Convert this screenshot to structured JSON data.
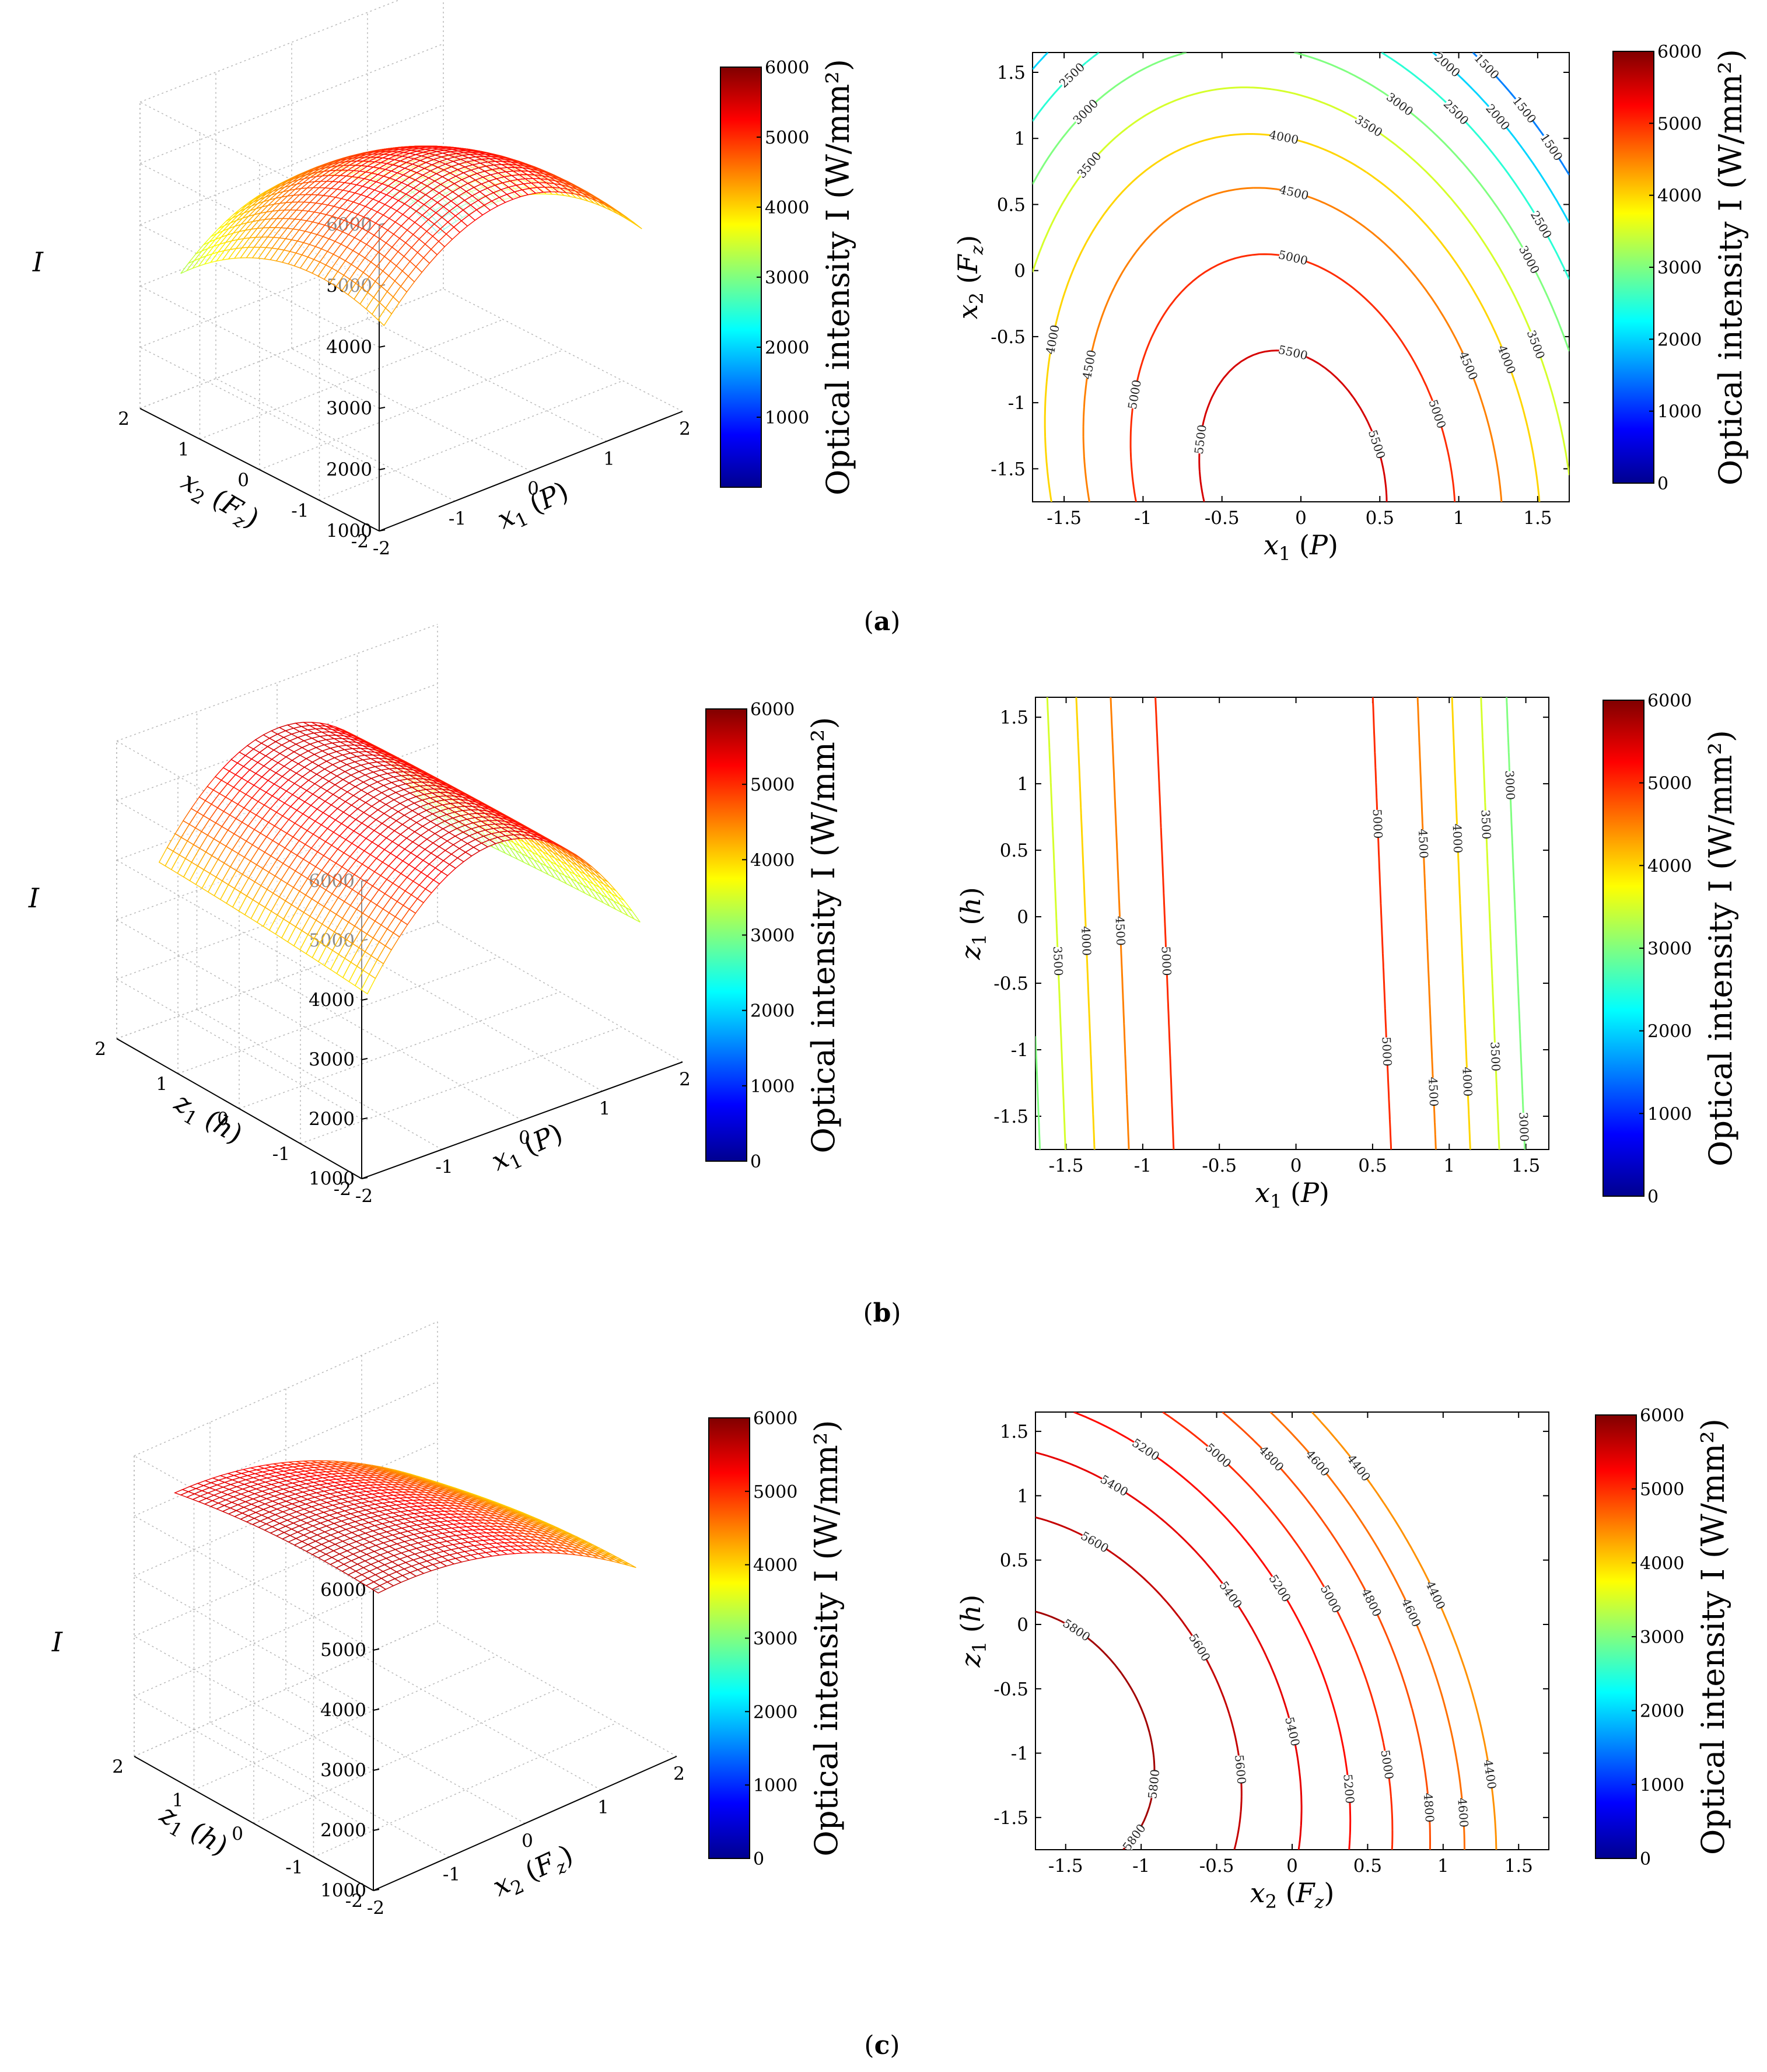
{
  "colors": {
    "jet": [
      "#00008f",
      "#0000ff",
      "#0080ff",
      "#00ffff",
      "#80ff80",
      "#ffff00",
      "#ff8000",
      "#ff0000",
      "#800000"
    ],
    "grid": "#b8b8b8",
    "axis": "#000000"
  },
  "chart_data": [
    {
      "id": "a-surface",
      "type": "surface3d",
      "caption": "(a)",
      "caption_letter": "a",
      "zlabel": "I",
      "xlabel": "x1 (P)",
      "ylabel": "x2 (Fz)",
      "xlim": [
        -2,
        2
      ],
      "ylim": [
        -2,
        2
      ],
      "zlim": [
        1000,
        6000
      ],
      "x_ticks": [
        "-2",
        "-1",
        "0",
        "1",
        "2"
      ],
      "y_ticks": [
        "-2",
        "-1",
        "0",
        "1",
        "2"
      ],
      "z_ticks": [
        "1000",
        "2000",
        "3000",
        "4000",
        "5000",
        "6000"
      ],
      "colorbar": {
        "label": "Optical intensity I (W/mm²)",
        "ticks": [
          "1000",
          "2000",
          "3000",
          "4000",
          "5000",
          "6000"
        ],
        "range": [
          0,
          6000
        ]
      },
      "surface": {
        "base": 5420,
        "cx": -0.1,
        "cy": -0.9,
        "ax": 440,
        "ay": 210,
        "axy": 80,
        "x_range": [
          -1.7,
          1.7
        ],
        "y_range": [
          -1.7,
          1.7
        ]
      }
    },
    {
      "id": "a-contour",
      "type": "contour",
      "xlabel": "x1 (P)",
      "ylabel": "x2 (Fz)",
      "xlim": [
        -1.7,
        1.7
      ],
      "ylim": [
        -1.75,
        1.65
      ],
      "x_ticks": [
        "-1.5",
        "-1",
        "-0.5",
        "0",
        "0.5",
        "1",
        "1.5"
      ],
      "y_ticks": [
        "-1.5",
        "-1",
        "-0.5",
        "0",
        "0.5",
        "1",
        "1.5"
      ],
      "levels": [
        1500,
        2000,
        2500,
        3000,
        3500,
        4000,
        4500,
        5000,
        5500
      ],
      "colorbar": {
        "label": "Optical intensity I (W/mm²)",
        "ticks": [
          "0",
          "1000",
          "2000",
          "3000",
          "4000",
          "5000",
          "6000"
        ],
        "range": [
          0,
          6000
        ]
      },
      "surface": {
        "base": 5750,
        "cx": -0.05,
        "cy": -1.6,
        "ax": 730,
        "ay": 260,
        "axy": 150
      }
    },
    {
      "id": "b-surface",
      "type": "surface3d",
      "caption": "(b)",
      "caption_letter": "b",
      "zlabel": "I",
      "xlabel": "x1 (P)",
      "ylabel": "z1 (h)",
      "xlim": [
        -2,
        2
      ],
      "ylim": [
        -2,
        2
      ],
      "zlim": [
        1000,
        6000
      ],
      "x_ticks": [
        "-2",
        "-1",
        "0",
        "1",
        "2"
      ],
      "y_ticks": [
        "-2",
        "-1",
        "0",
        "1",
        "2"
      ],
      "z_ticks": [
        "1000",
        "2000",
        "3000",
        "4000",
        "5000",
        "6000"
      ],
      "colorbar": {
        "label": "Optical intensity I (W/mm²)",
        "ticks": [
          "0",
          "1000",
          "2000",
          "3000",
          "4000",
          "5000",
          "6000"
        ],
        "range": [
          0,
          6000
        ]
      },
      "surface": {
        "base": 5550,
        "cx": -0.15,
        "cy": 0,
        "ax": 680,
        "ay": 10,
        "axy": 40,
        "x_range": [
          -1.7,
          1.7
        ],
        "y_range": [
          -1.7,
          1.7
        ]
      }
    },
    {
      "id": "b-contour",
      "type": "contour",
      "xlabel": "x1 (P)",
      "ylabel": "z1 (h)",
      "xlim": [
        -1.7,
        1.65
      ],
      "ylim": [
        -1.75,
        1.65
      ],
      "x_ticks": [
        "-1.5",
        "-1",
        "-0.5",
        "0",
        "0.5",
        "1",
        "1.5"
      ],
      "y_ticks": [
        "-1.5",
        "-1",
        "-0.5",
        "0",
        "0.5",
        "1",
        "1.5"
      ],
      "levels": [
        3000,
        3500,
        4000,
        4500,
        5000
      ],
      "colorbar": {
        "label": "Optical intensity I (W/mm²)",
        "ticks": [
          "0",
          "1000",
          "2000",
          "3000",
          "4000",
          "5000",
          "6000"
        ],
        "range": [
          0,
          6000
        ]
      },
      "surface": {
        "base": 5500,
        "cx": -0.15,
        "cy": 0,
        "ax": 1000,
        "ay": 0,
        "axy": 70
      }
    },
    {
      "id": "c-surface",
      "type": "surface3d",
      "caption": "(c)",
      "caption_letter": "c",
      "zlabel": "I",
      "xlabel": "x2 (Fz)",
      "ylabel": "z1 (h)",
      "xlim": [
        -2,
        2
      ],
      "ylim": [
        -2,
        2
      ],
      "zlim": [
        1000,
        6000
      ],
      "x_ticks": [
        "-2",
        "-1",
        "0",
        "1",
        "2"
      ],
      "y_ticks": [
        "-2",
        "-1",
        "0",
        "1",
        "2"
      ],
      "z_ticks": [
        "1000",
        "2000",
        "3000",
        "4000",
        "5000",
        "6000"
      ],
      "colorbar": {
        "label": "Optical intensity I (W/mm²)",
        "ticks": [
          "0",
          "1000",
          "2000",
          "3000",
          "4000",
          "5000",
          "6000"
        ],
        "range": [
          0,
          6000
        ]
      },
      "surface": {
        "base": 5650,
        "cx": -1.5,
        "cy": -0.9,
        "ax": 150,
        "ay": 40,
        "axy": 20,
        "x_range": [
          -1.7,
          1.7
        ],
        "y_range": [
          -1.7,
          1.7
        ]
      }
    },
    {
      "id": "c-contour",
      "type": "contour",
      "xlabel": "x2 (Fz)",
      "ylabel": "z1 (h)",
      "xlim": [
        -1.7,
        1.7
      ],
      "ylim": [
        -1.75,
        1.65
      ],
      "x_ticks": [
        "-1.5",
        "-1",
        "-0.5",
        "0",
        "0.5",
        "1",
        "1.5"
      ],
      "y_ticks": [
        "-1.5",
        "-1",
        "-0.5",
        "0",
        "0.5",
        "1",
        "1.5"
      ],
      "levels": [
        4400,
        4600,
        4800,
        5000,
        5200,
        5400,
        5600,
        5800
      ],
      "colorbar": {
        "label": "Optical intensity I (W/mm²)",
        "ticks": [
          "0",
          "1000",
          "2000",
          "3000",
          "4000",
          "5000",
          "6000"
        ],
        "range": [
          0,
          6000
        ]
      },
      "surface": {
        "base": 5900,
        "cx": -1.7,
        "cy": -0.9,
        "ax": 170,
        "ay": 100,
        "axy": 60
      }
    }
  ]
}
